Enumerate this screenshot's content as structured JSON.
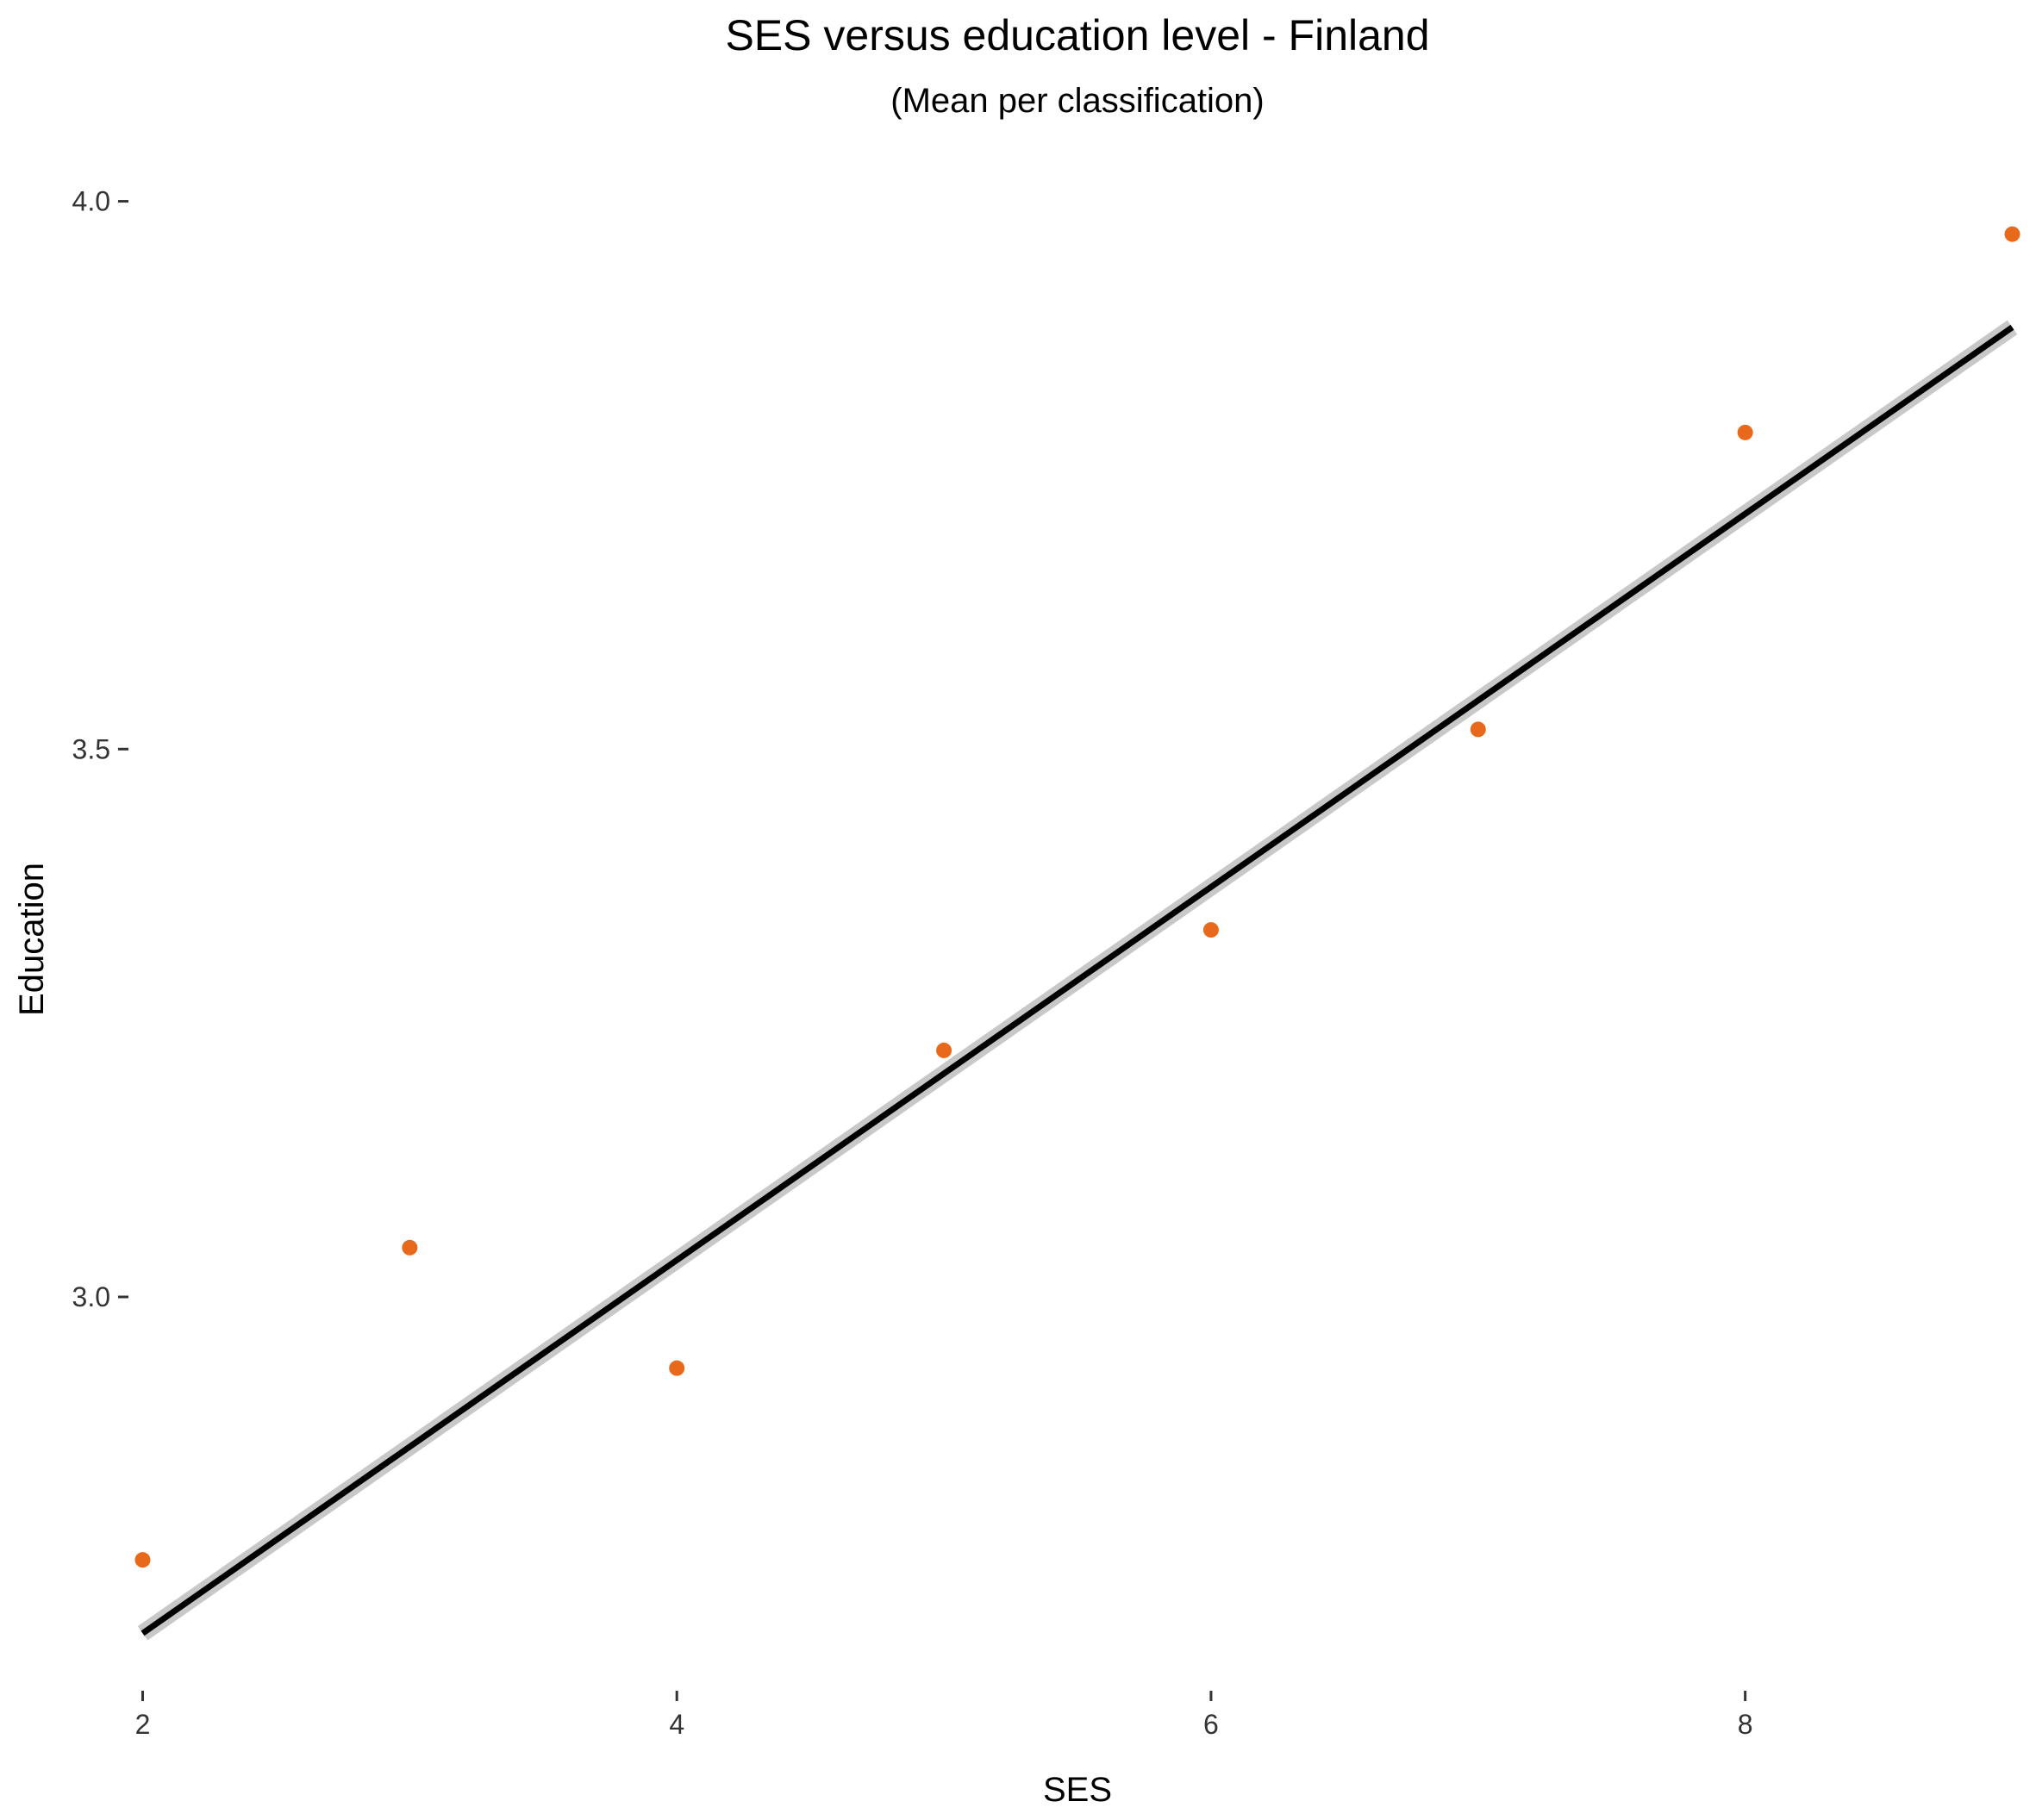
{
  "chart_data": {
    "type": "scatter",
    "title": "SES versus education level - Finland",
    "subtitle": "(Mean per classification)",
    "xlabel": "SES",
    "ylabel": "Education",
    "xlim": [
      1.95,
      9.05
    ],
    "ylim": [
      2.65,
      4.05
    ],
    "x_ticks": [
      2,
      4,
      6,
      8
    ],
    "x_tick_labels": [
      "2",
      "4",
      "6",
      "8"
    ],
    "y_ticks": [
      3.0,
      3.5,
      4.0
    ],
    "y_tick_labels": [
      "3.0",
      "3.5",
      "4.0"
    ],
    "grid": false,
    "series": [
      {
        "points": [
          {
            "x": 2,
            "y": 2.76
          },
          {
            "x": 3,
            "y": 3.045
          },
          {
            "x": 4,
            "y": 2.935
          },
          {
            "x": 5,
            "y": 3.225
          },
          {
            "x": 6,
            "y": 3.335
          },
          {
            "x": 7,
            "y": 3.518
          },
          {
            "x": 8,
            "y": 3.789
          },
          {
            "x": 9,
            "y": 3.97
          }
        ],
        "color": "#e8691b"
      }
    ],
    "trendline": {
      "kind": "linear",
      "x": [
        2,
        9
      ],
      "y": [
        2.693,
        3.885
      ],
      "color": "#000000",
      "band_color": "#c8c8c8"
    }
  }
}
